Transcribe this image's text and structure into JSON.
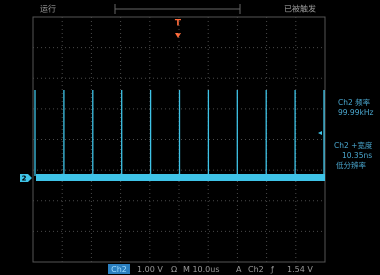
{
  "status": {
    "run": "运行",
    "trigger": "已被触发",
    "trigger_marker": "T",
    "channel_marker": "2"
  },
  "measurements": [
    {
      "label": "Ch2 频率",
      "value": "99.99kHz"
    },
    {
      "label": "Ch2 +宽度",
      "value": "10.35ns",
      "note": "低分辨率"
    }
  ],
  "bottom_bar": {
    "channel": "Ch2",
    "scale": "1.00 V",
    "coupling": "Ω",
    "timebase": "M 10.0us",
    "trigger_mode": "A",
    "trigger_source": "Ch2",
    "trigger_slope": "ƒ",
    "trigger_level": "1.54 V"
  }
}
